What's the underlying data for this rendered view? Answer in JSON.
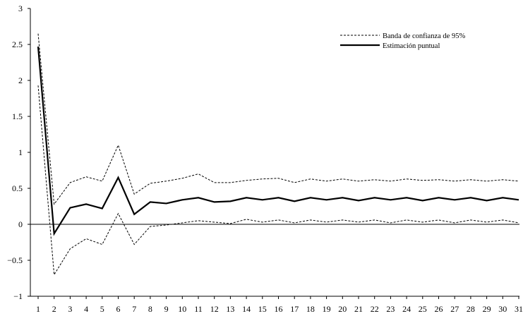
{
  "chart_data": {
    "type": "line",
    "x": [
      1,
      2,
      3,
      4,
      5,
      6,
      7,
      8,
      9,
      10,
      11,
      12,
      13,
      14,
      15,
      16,
      17,
      18,
      19,
      20,
      21,
      22,
      23,
      24,
      25,
      26,
      27,
      28,
      29,
      30,
      31
    ],
    "series": [
      {
        "name": "Banda de confianza de 95%",
        "style": "dashed",
        "upper": [
          2.65,
          0.28,
          0.58,
          0.66,
          0.6,
          1.1,
          0.42,
          0.57,
          0.6,
          0.64,
          0.7,
          0.58,
          0.58,
          0.61,
          0.63,
          0.64,
          0.58,
          0.63,
          0.6,
          0.63,
          0.6,
          0.62,
          0.6,
          0.63,
          0.61,
          0.62,
          0.6,
          0.62,
          0.6,
          0.62,
          0.6
        ],
        "lower": [
          1.93,
          -0.7,
          -0.34,
          -0.2,
          -0.28,
          0.15,
          -0.28,
          -0.03,
          -0.01,
          0.02,
          0.05,
          0.03,
          0.01,
          0.07,
          0.03,
          0.06,
          0.02,
          0.06,
          0.03,
          0.06,
          0.03,
          0.06,
          0.02,
          0.06,
          0.03,
          0.06,
          0.02,
          0.06,
          0.03,
          0.06,
          0.02
        ]
      },
      {
        "name": "Estimación puntual",
        "style": "solid",
        "values": [
          2.47,
          -0.13,
          0.23,
          0.28,
          0.22,
          0.65,
          0.14,
          0.31,
          0.29,
          0.34,
          0.37,
          0.31,
          0.32,
          0.37,
          0.34,
          0.37,
          0.32,
          0.37,
          0.34,
          0.37,
          0.33,
          0.37,
          0.34,
          0.37,
          0.33,
          0.37,
          0.34,
          0.37,
          0.33,
          0.37,
          0.34
        ]
      }
    ],
    "y_ticks": [
      "3",
      "2.5",
      "2",
      "1.5",
      "1",
      "0.5",
      "0",
      "−0.5",
      "−1"
    ],
    "x_ticks": [
      "1",
      "2",
      "3",
      "4",
      "5",
      "6",
      "7",
      "8",
      "9",
      "10",
      "11",
      "12",
      "13",
      "14",
      "15",
      "16",
      "17",
      "18",
      "19",
      "20",
      "21",
      "22",
      "23",
      "24",
      "25",
      "26",
      "27",
      "28",
      "29",
      "30",
      "31"
    ],
    "ylim": [
      -1,
      3
    ],
    "xlim": [
      1,
      31
    ],
    "grid": false,
    "zero_line": true,
    "legend_position": "top-right",
    "colors": {
      "line": "#000000",
      "background": "#ffffff"
    }
  }
}
